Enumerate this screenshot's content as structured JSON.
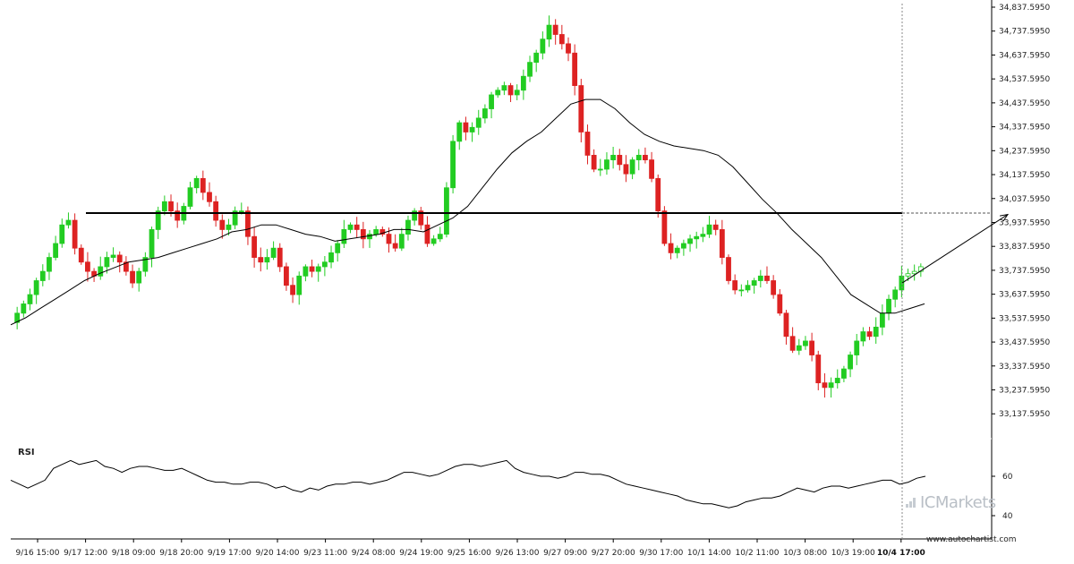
{
  "chart_data": {
    "type": "candlestick",
    "ylim": [
      33087.595,
      34837.595
    ],
    "y_ticks": [
      "34,837.5950",
      "34,737.5950",
      "34,637.5950",
      "34,537.5950",
      "34,437.5950",
      "34,337.5950",
      "34,237.5950",
      "34,137.5950",
      "34,037.5950",
      "33,937.5950",
      "33,837.5950",
      "33,737.5950",
      "33,637.5950",
      "33,537.5950",
      "33,437.5950",
      "33,337.5950",
      "33,237.5950",
      "33,137.5950"
    ],
    "x_ticks": [
      "9/16 15:00",
      "9/17 12:00",
      "9/18 09:00",
      "9/18 20:00",
      "9/19 17:00",
      "9/20 14:00",
      "9/23 11:00",
      "9/24 08:00",
      "9/24 19:00",
      "9/25 16:00",
      "9/26 13:00",
      "9/27 09:00",
      "9/27 20:00",
      "9/30 17:00",
      "10/1 14:00",
      "10/2 11:00",
      "10/3 08:00",
      "10/3 19:00",
      "10/4 17:00"
    ],
    "x_tick_highlight": "10/4 17:00",
    "support_resistance_level": 33951.0,
    "forecast_arrow": {
      "from": 33650,
      "to": 33945
    },
    "colors": {
      "up": "#22cc22",
      "down": "#dd2222",
      "line": "#000000",
      "rsi": "#000000"
    },
    "close_path": [
      33480,
      33520,
      33560,
      33600,
      33660,
      33700,
      33760,
      33820,
      33900,
      33920,
      33800,
      33740,
      33700,
      33680,
      33720,
      33760,
      33770,
      33740,
      33700,
      33650,
      33700,
      33760,
      33880,
      33960,
      34000,
      33960,
      33920,
      33980,
      34060,
      34100,
      34040,
      34000,
      33920,
      33880,
      33900,
      33960,
      33960,
      33850,
      33760,
      33740,
      33760,
      33800,
      33720,
      33640,
      33600,
      33680,
      33720,
      33700,
      33720,
      33740,
      33780,
      33820,
      33880,
      33900,
      33880,
      33840,
      33860,
      33880,
      33860,
      33820,
      33800,
      33860,
      33920,
      33960,
      33900,
      33820,
      33840,
      33860,
      34060,
      34260,
      34340,
      34300,
      34320,
      34360,
      34400,
      34460,
      34480,
      34500,
      34460,
      34480,
      34540,
      34600,
      34640,
      34700,
      34760,
      34720,
      34680,
      34640,
      34500,
      34300,
      34200,
      34140,
      34140,
      34180,
      34200,
      34160,
      34120,
      34180,
      34200,
      34180,
      34100,
      33960,
      33820,
      33780,
      33800,
      33820,
      33840,
      33850,
      33860,
      33900,
      33880,
      33760,
      33660,
      33620,
      33620,
      33640,
      33660,
      33680,
      33660,
      33600,
      33520,
      33420,
      33360,
      33380,
      33400,
      33340,
      33220,
      33200,
      33220,
      33240,
      33280,
      33340,
      33400,
      33440,
      33420,
      33460,
      33520,
      33580,
      33620,
      33680,
      33690,
      33700,
      33720
    ],
    "ma_path": [
      33470,
      33500,
      33540,
      33580,
      33620,
      33660,
      33690,
      33715,
      33740,
      33750,
      33760,
      33780,
      33800,
      33820,
      33840,
      33870,
      33880,
      33900,
      33900,
      33880,
      33860,
      33850,
      33830,
      33840,
      33850,
      33860,
      33880,
      33880,
      33870,
      33900,
      33930,
      33980,
      34060,
      34140,
      34210,
      34260,
      34300,
      34360,
      34420,
      34440,
      34440,
      34400,
      34340,
      34290,
      34260,
      34240,
      34230,
      34220,
      34200,
      34150,
      34080,
      34010,
      33950,
      33880,
      33820,
      33760,
      33680,
      33600,
      33560,
      33520,
      33520,
      33540,
      33560
    ],
    "rsi": {
      "label": "RSI",
      "ticks": [
        "60",
        "40"
      ],
      "ylim": [
        30,
        80
      ],
      "values": [
        58,
        56,
        54,
        56,
        58,
        64,
        66,
        68,
        66,
        67,
        68,
        65,
        64,
        62,
        64,
        65,
        65,
        64,
        63,
        63,
        64,
        62,
        60,
        58,
        57,
        57,
        56,
        56,
        57,
        57,
        56,
        54,
        55,
        53,
        52,
        54,
        53,
        55,
        56,
        56,
        57,
        57,
        56,
        57,
        58,
        60,
        62,
        62,
        61,
        60,
        61,
        63,
        65,
        66,
        66,
        65,
        66,
        67,
        68,
        64,
        62,
        61,
        60,
        60,
        59,
        60,
        62,
        62,
        61,
        61,
        60,
        58,
        56,
        55,
        54,
        53,
        52,
        51,
        50,
        48,
        47,
        46,
        46,
        45,
        44,
        45,
        47,
        48,
        49,
        49,
        50,
        52,
        54,
        53,
        52,
        54,
        55,
        55,
        54,
        55,
        56,
        57,
        58,
        58,
        56,
        57,
        59,
        60
      ]
    }
  },
  "footer": {
    "watermark": "ICMarkets",
    "source": "www.autochartist.com"
  }
}
